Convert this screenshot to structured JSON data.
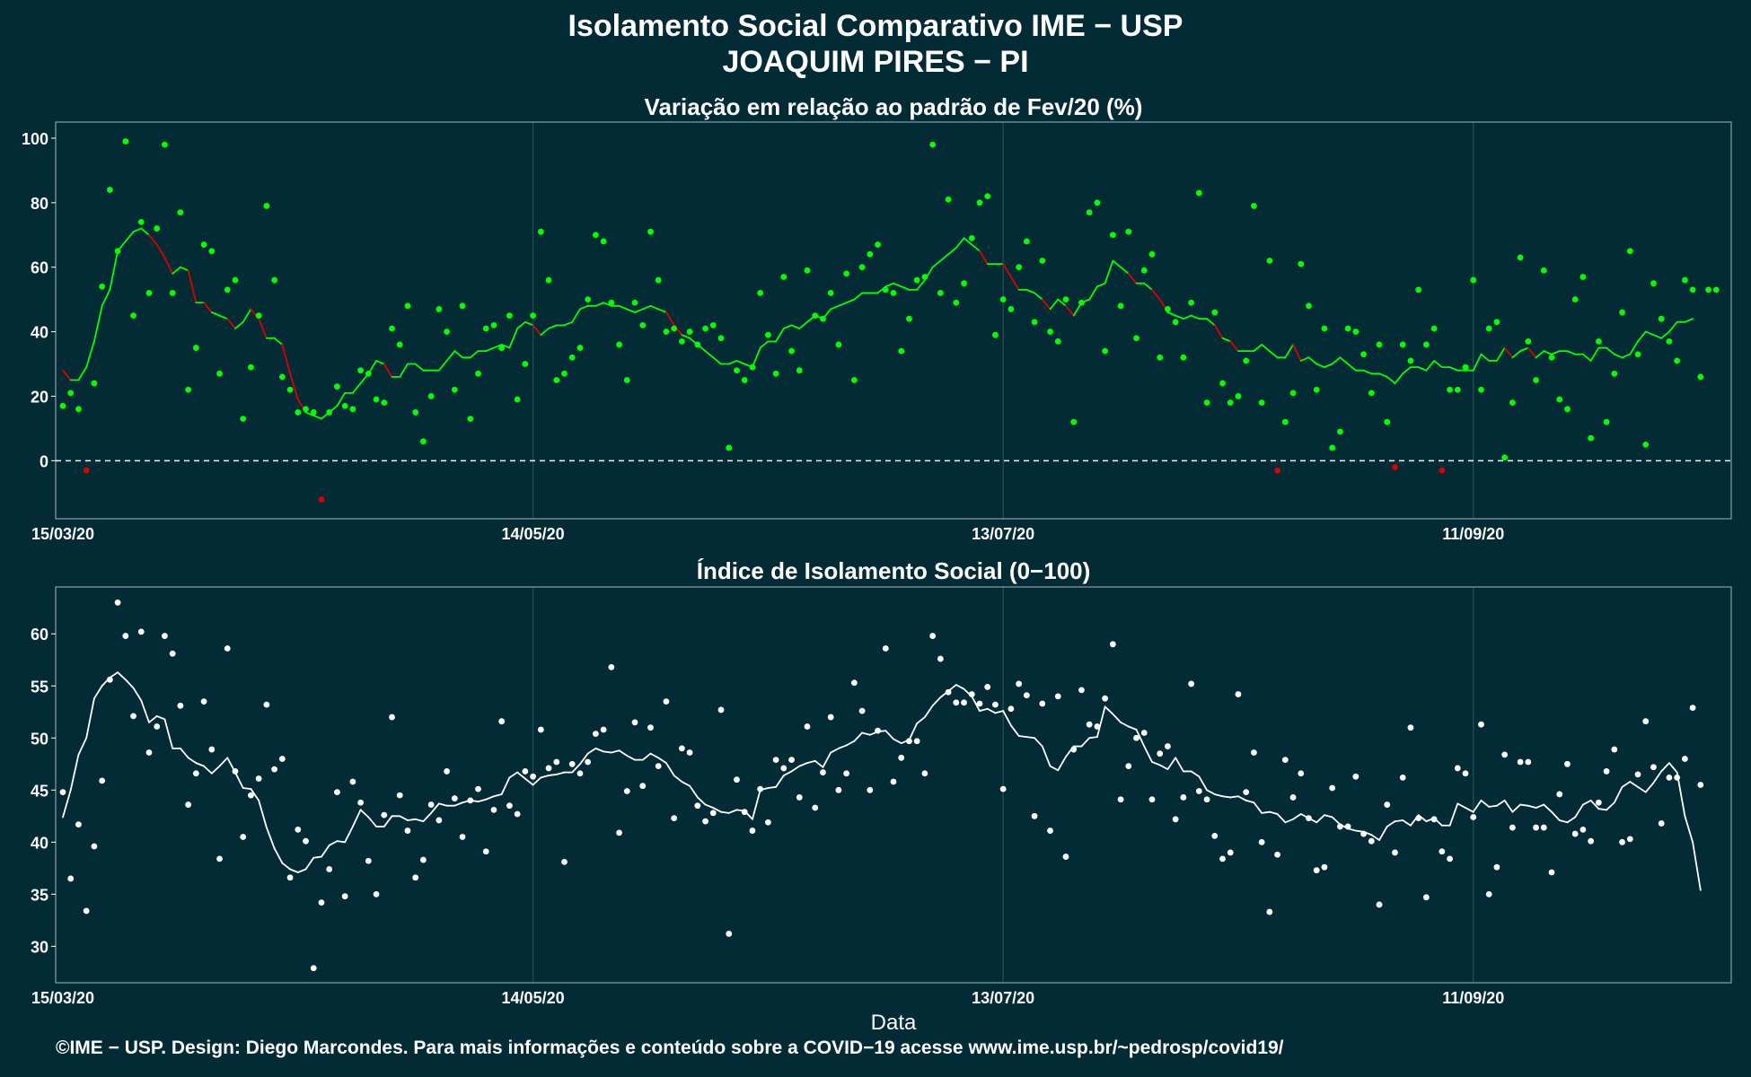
{
  "header": {
    "title": "Isolamento Social Comparativo IME − USP",
    "subtitle": "JOAQUIM PIRES − PI"
  },
  "footer": {
    "text": "©IME − USP. Design: Diego Marcondes. Para mais informações e conteúdo sobre a COVID−19 acesse www.ime.usp.br/~pedrosp/covid19/"
  },
  "colors": {
    "background": "#022b35",
    "positive": "#00ff00",
    "negative": "#dd0000",
    "index": "#ffffff",
    "grid": "#1f4a50",
    "axis_text": "#ffffff"
  },
  "chart_data": [
    {
      "type": "scatter",
      "title": "Variação em relação ao padrão de Fev/20 (%)",
      "xlabel": "",
      "ylabel": "",
      "ylim": [
        -18,
        105
      ],
      "yticks": [
        0,
        20,
        40,
        60,
        80,
        100
      ],
      "x_start": "15/03/20",
      "x_tick_labels": [
        "15/03/20",
        "14/05/20",
        "13/07/20",
        "11/09/20"
      ],
      "x_tick_days": [
        0,
        60,
        120,
        180
      ],
      "reference_line": 0,
      "n_days": 213,
      "series": [
        {
          "kind": "points",
          "values": [
            17,
            21,
            16,
            -3,
            24,
            54,
            84,
            65,
            99,
            45,
            74,
            52,
            72,
            98,
            52,
            77,
            22,
            35,
            67,
            65,
            27,
            53,
            56,
            13,
            29,
            45,
            79,
            56,
            26,
            22,
            15,
            16,
            15,
            -12,
            15,
            23,
            17,
            16,
            28,
            27,
            19,
            18,
            41,
            36,
            48,
            15,
            6,
            20,
            47,
            40,
            22,
            48,
            13,
            27,
            41,
            42,
            35,
            45,
            19,
            30,
            45,
            71,
            56,
            25,
            27,
            32,
            35,
            50,
            70,
            68,
            49,
            36,
            25,
            49,
            42,
            71,
            56,
            40,
            41,
            37,
            40,
            36,
            41,
            42,
            38,
            4,
            28,
            25,
            29,
            52,
            39,
            27,
            57,
            34,
            28,
            59,
            45,
            44,
            52,
            36,
            58,
            25,
            60,
            64,
            67,
            53,
            52,
            34,
            44,
            56,
            57,
            98,
            52,
            81,
            49,
            55,
            69,
            80,
            82,
            39,
            50,
            47,
            60,
            68,
            43,
            62,
            40,
            37,
            50,
            12,
            49,
            77,
            80,
            34,
            70,
            48,
            71,
            38,
            59,
            64,
            32,
            47,
            43,
            32,
            49,
            83,
            18,
            46,
            24,
            18,
            20,
            31,
            79,
            18,
            62,
            -3,
            12,
            21,
            61,
            48,
            22,
            41,
            4,
            9,
            41,
            40,
            33,
            21,
            36,
            12,
            -2,
            36,
            31,
            53,
            36,
            41,
            -3,
            22,
            22,
            29,
            56,
            22,
            41,
            43,
            1,
            18,
            63,
            37,
            25,
            59,
            32,
            19,
            16,
            50,
            57,
            7,
            37,
            12,
            27,
            46,
            65,
            33,
            5,
            55,
            44,
            37,
            31,
            56,
            53,
            26,
            53,
            53
          ]
        },
        {
          "kind": "moving-average",
          "values": [
            28,
            25,
            25,
            29,
            37,
            48,
            53,
            65,
            68,
            71,
            72,
            70,
            67,
            63,
            58,
            60,
            59,
            49,
            49,
            46,
            45,
            44,
            41,
            43,
            47,
            44,
            38,
            38,
            36,
            27,
            19,
            15,
            14,
            13,
            15,
            17,
            21,
            21,
            24,
            27,
            31,
            30,
            26,
            26,
            30,
            30,
            28,
            28,
            28,
            31,
            34,
            32,
            32,
            34,
            34,
            35,
            36,
            35,
            41,
            43,
            42,
            39,
            41,
            42,
            42,
            43,
            47,
            48,
            48,
            49,
            48,
            48,
            47,
            46,
            47,
            48,
            47,
            46,
            42,
            39,
            38,
            36,
            34,
            32,
            30,
            30,
            31,
            30,
            29,
            35,
            37,
            37,
            41,
            42,
            41,
            43,
            45,
            44,
            47,
            48,
            49,
            50,
            52,
            52,
            52,
            54,
            55,
            54,
            53,
            53,
            56,
            60,
            62,
            64,
            66,
            69,
            67,
            65,
            61,
            61,
            61,
            57,
            53,
            53,
            52,
            50,
            47,
            50,
            48,
            45,
            49,
            50,
            54,
            55,
            62,
            60,
            58,
            55,
            55,
            53,
            50,
            46,
            45,
            44,
            45,
            44,
            44,
            42,
            38,
            37,
            34,
            34,
            34,
            36,
            34,
            32,
            32,
            36,
            31,
            32,
            30,
            29,
            30,
            32,
            30,
            28,
            28,
            27,
            27,
            26,
            24,
            27,
            29,
            29,
            28,
            31,
            29,
            29,
            28,
            28,
            28,
            33,
            31,
            31,
            35,
            32,
            34,
            35,
            32,
            34,
            33,
            34,
            34,
            33,
            33,
            31,
            35,
            35,
            33,
            32,
            33,
            37,
            40,
            39,
            38,
            40,
            43,
            43,
            44
          ]
        }
      ]
    },
    {
      "type": "scatter",
      "title": "Índice de Isolamento Social (0−100)",
      "xlabel": "Data",
      "ylabel": "",
      "ylim": [
        26.5,
        64.5
      ],
      "yticks": [
        30,
        35,
        40,
        45,
        50,
        55,
        60
      ],
      "x_start": "15/03/20",
      "x_tick_labels": [
        "15/03/20",
        "14/05/20",
        "13/07/20",
        "11/09/20"
      ],
      "x_tick_days": [
        0,
        60,
        120,
        180
      ],
      "n_days": 213,
      "series": [
        {
          "kind": "points",
          "values": [
            44.8,
            36.5,
            41.7,
            33.4,
            39.6,
            45.9,
            55.6,
            63.0,
            59.8,
            52.1,
            60.2,
            48.6,
            51.1,
            59.8,
            58.1,
            53.1,
            43.6,
            46.6,
            53.5,
            48.9,
            38.4,
            58.6,
            46.8,
            40.5,
            44.5,
            46.1,
            53.2,
            47.0,
            48.0,
            36.6,
            41.2,
            40.1,
            27.9,
            34.2,
            37.4,
            44.8,
            34.8,
            45.8,
            43.8,
            38.2,
            35.0,
            42.6,
            52.0,
            44.5,
            41.1,
            36.6,
            38.3,
            43.6,
            42.1,
            46.8,
            44.2,
            40.5,
            44.0,
            45.1,
            39.1,
            43.1,
            51.6,
            43.5,
            42.7,
            46.8,
            46.3,
            50.8,
            47.1,
            47.7,
            38.1,
            47.5,
            46.6,
            47.7,
            50.4,
            50.8,
            56.8,
            40.9,
            44.9,
            51.5,
            45.4,
            51.0,
            47.3,
            53.5,
            42.3,
            49.0,
            48.6,
            43.5,
            42.0,
            42.8,
            52.7,
            31.2,
            46.0,
            42.9,
            41.1,
            45.1,
            41.9,
            47.9,
            47.1,
            47.9,
            44.3,
            51.1,
            43.3,
            46.7,
            52.0,
            45.0,
            46.6,
            55.3,
            52.6,
            45.0,
            50.7,
            58.6,
            45.8,
            48.1,
            49.7,
            49.7,
            46.6,
            59.8,
            57.6,
            54.4,
            53.4,
            53.4,
            54.2,
            53.3,
            54.9,
            53.2,
            45.1,
            52.8,
            55.2,
            54.1,
            42.5,
            53.3,
            41.1,
            54.0,
            38.6,
            48.9,
            54.6,
            51.3,
            51.1,
            53.8,
            59.0,
            44.1,
            47.3,
            50.0,
            50.5,
            44.1,
            48.5,
            49.2,
            42.2,
            44.3,
            55.2,
            44.9,
            44.1,
            40.6,
            38.4,
            39.0,
            54.2,
            44.8,
            48.6,
            40.0,
            33.3,
            38.8,
            47.9,
            44.3,
            46.6,
            42.3,
            37.3,
            37.6,
            45.2,
            41.5,
            41.5,
            46.3,
            40.8,
            40.1,
            34.0,
            43.6,
            39.0,
            46.2,
            51.0,
            42.3,
            34.7,
            42.2,
            39.1,
            38.4,
            47.1,
            46.6,
            42.4,
            51.3,
            35.0,
            37.6,
            48.4,
            41.4,
            47.7,
            47.7,
            41.4,
            41.4,
            37.1,
            44.6,
            47.5,
            40.8,
            41.2,
            40.1,
            43.8,
            46.8,
            48.9,
            40.0,
            40.3,
            46.5,
            51.6,
            47.2,
            41.8,
            46.2,
            46.2,
            48.0,
            52.9,
            45.5
          ]
        },
        {
          "kind": "moving-average",
          "values": [
            42.4,
            45.0,
            48.4,
            50.0,
            53.8,
            55.0,
            55.8,
            56.3,
            55.6,
            54.8,
            53.6,
            51.5,
            52.1,
            51.8,
            49.0,
            49.0,
            48.1,
            47.6,
            47.3,
            46.6,
            47.3,
            48.1,
            46.7,
            45.2,
            45.1,
            44.0,
            41.4,
            39.4,
            38.0,
            37.4,
            37.1,
            37.4,
            38.5,
            38.6,
            39.7,
            40.1,
            40.0,
            41.5,
            43.1,
            42.4,
            41.5,
            41.5,
            42.5,
            42.5,
            42.1,
            42.2,
            42.0,
            42.8,
            43.7,
            43.5,
            43.5,
            43.8,
            44.0,
            43.9,
            44.1,
            44.4,
            44.6,
            46.2,
            46.7,
            46.1,
            45.5,
            46.2,
            46.4,
            46.5,
            46.7,
            46.7,
            47.5,
            48.5,
            49.0,
            48.7,
            48.6,
            48.8,
            48.3,
            47.9,
            47.9,
            48.5,
            48.1,
            47.6,
            46.4,
            45.8,
            45.4,
            44.3,
            43.6,
            43.3,
            42.9,
            42.8,
            43.1,
            43.0,
            42.2,
            45.0,
            45.2,
            45.3,
            46.4,
            46.8,
            47.3,
            47.6,
            47.8,
            47.2,
            48.6,
            49.0,
            49.3,
            49.7,
            50.5,
            50.3,
            50.6,
            50.7,
            49.9,
            49.5,
            49.8,
            51.4,
            52.0,
            53.1,
            53.9,
            54.5,
            55.1,
            54.7,
            54.0,
            52.6,
            52.8,
            52.4,
            52.6,
            51.2,
            50.2,
            50.1,
            50.0,
            49.2,
            47.3,
            46.9,
            48.2,
            49.2,
            49.2,
            50.0,
            50.1,
            53.0,
            52.3,
            51.5,
            51.1,
            50.8,
            49.2,
            47.7,
            47.4,
            47.0,
            48.1,
            46.8,
            46.8,
            46.3,
            45.0,
            44.6,
            44.4,
            44.3,
            44.4,
            44.0,
            43.8,
            42.8,
            42.9,
            42.7,
            41.9,
            42.2,
            42.7,
            42.3,
            41.9,
            42.6,
            42.4,
            41.7,
            41.3,
            41.1,
            41.0,
            40.7,
            40.2,
            41.5,
            42.0,
            42.1,
            41.6,
            42.6,
            42.0,
            42.3,
            41.6,
            41.6,
            43.7,
            43.3,
            42.9,
            44.0,
            43.4,
            43.5,
            44.0,
            42.9,
            43.6,
            43.5,
            43.3,
            43.6,
            42.9,
            42.1,
            41.9,
            42.4,
            43.6,
            44.0,
            43.2,
            43.1,
            43.8,
            45.3,
            45.8,
            45.3,
            44.8,
            45.7,
            46.8,
            47.6,
            46.7,
            42.5,
            40.0,
            35.4
          ]
        }
      ]
    }
  ]
}
